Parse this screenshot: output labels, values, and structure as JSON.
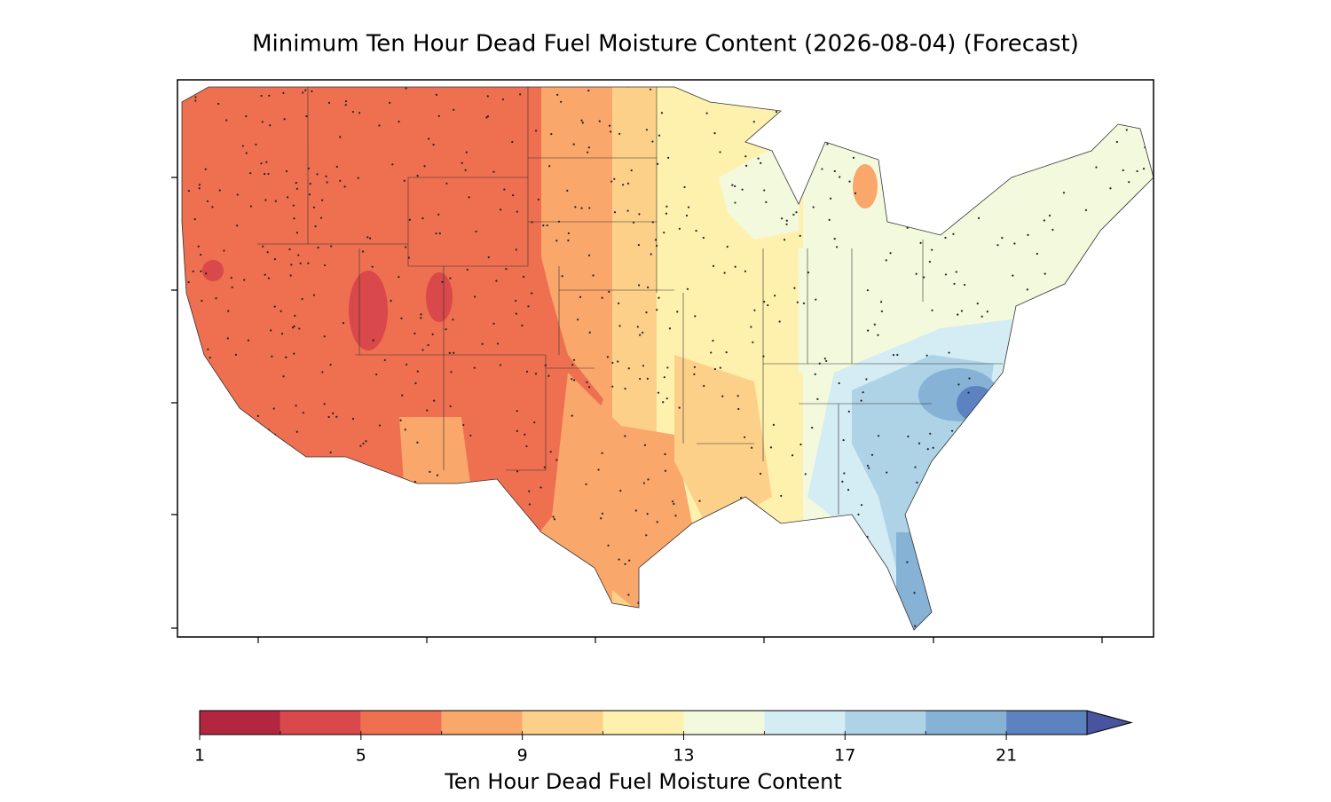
{
  "title": "Minimum Ten Hour Dead Fuel Moisture Content (2026-08-04) (Forecast)",
  "colorbar": {
    "label": "Ten Hour Dead Fuel Moisture Content",
    "levels": [
      1,
      3,
      5,
      7,
      9,
      11,
      13,
      15,
      17,
      19,
      21,
      23
    ],
    "colors": [
      "#b22640",
      "#d9484a",
      "#ee7050",
      "#f9a76b",
      "#fdd08a",
      "#fef1ad",
      "#f3f9dc",
      "#d4ecf3",
      "#aed3e6",
      "#85b2d5",
      "#5c83c0",
      "#4a53a0"
    ],
    "extend": "max",
    "ticks": [
      1,
      5,
      9,
      13,
      17,
      21
    ]
  }
}
